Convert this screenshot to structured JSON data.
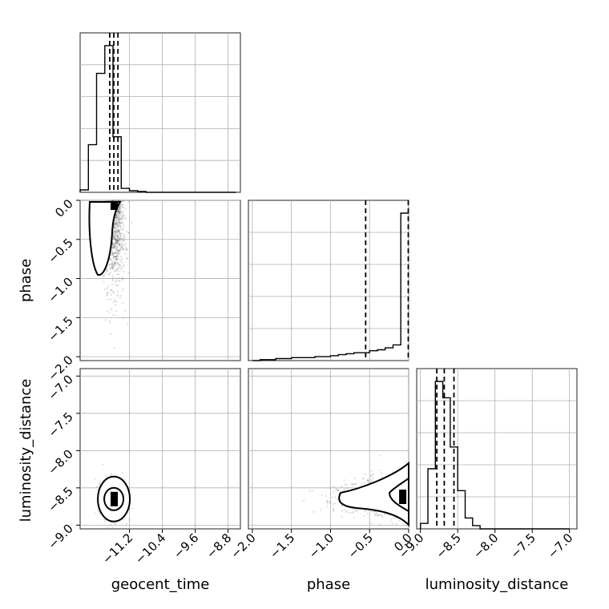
{
  "chart_data": {
    "type": "corner",
    "parameters": [
      "geocent_time",
      "phase",
      "luminosity_distance"
    ],
    "quantiles_shown": true,
    "grid": true,
    "ranges": {
      "geocent_time": [
        -12.4,
        -8.5
      ],
      "phase": [
        -2.05,
        0.0
      ],
      "luminosity_distance": [
        -9.05,
        -6.9
      ]
    },
    "ticks": {
      "geocent_time": [
        -11.2,
        -10.4,
        -9.6,
        -8.8
      ],
      "phase": [
        -2.0,
        -1.5,
        -1.0,
        -0.5,
        0.0
      ],
      "luminosity_distance": [
        -9.0,
        -8.5,
        -8.0,
        -7.5,
        -7.0
      ]
    },
    "tick_labels": {
      "geocent_time": [
        "−11.2",
        "−10.4",
        "−9.6",
        "−8.8"
      ],
      "phase": [
        "−2.0",
        "−1.5",
        "−1.0",
        "−0.5",
        "0.0"
      ],
      "luminosity_distance": [
        "−9.0",
        "−8.5",
        "−8.0",
        "−7.5",
        "−7.0"
      ]
    },
    "axis_labels": {
      "x_bottom": [
        "geocent_time",
        "phase",
        "luminosity_distance"
      ],
      "y_left": [
        "phase",
        "luminosity_distance"
      ]
    },
    "histograms": {
      "geocent_time": {
        "bin_edges": [
          -12.4,
          -12.2,
          -12.0,
          -11.8,
          -11.6,
          -11.4,
          -11.2,
          -11.0,
          -10.8,
          -10.6,
          -10.4,
          -10.2,
          -10.0,
          -9.8,
          -9.6,
          -9.4,
          -9.2,
          -9.0,
          -8.8,
          -8.6
        ],
        "counts": [
          3,
          60,
          150,
          185,
          70,
          5,
          2,
          1,
          0,
          0,
          0,
          0,
          0,
          0,
          0,
          0,
          0,
          0,
          0
        ],
        "quantiles": [
          -11.68,
          -11.58,
          -11.48
        ]
      },
      "phase": {
        "bin_edges": [
          -2.0,
          -1.9,
          -1.8,
          -1.7,
          -1.6,
          -1.5,
          -1.4,
          -1.3,
          -1.2,
          -1.1,
          -1.0,
          -0.9,
          -0.8,
          -0.7,
          -0.6,
          -0.5,
          -0.4,
          -0.3,
          -0.2,
          -0.1,
          0.0
        ],
        "counts": [
          0,
          1,
          1,
          2,
          2,
          3,
          3,
          3,
          4,
          4,
          5,
          6,
          7,
          8,
          8,
          10,
          11,
          13,
          16,
          150
        ],
        "quantiles": [
          -0.55,
          -0.005
        ]
      },
      "luminosity_distance": {
        "bin_edges": [
          -9.0,
          -8.9,
          -8.8,
          -8.7,
          -8.6,
          -8.5,
          -8.4,
          -8.3,
          -8.2,
          -8.1,
          -8.0,
          -7.9,
          -7.8,
          -7.7,
          -7.6,
          -7.5,
          -7.4,
          -7.3,
          -7.2,
          -7.1,
          -7.0
        ],
        "counts": [
          5,
          55,
          135,
          120,
          75,
          35,
          10,
          3,
          0,
          0,
          0,
          0,
          0,
          0,
          0,
          0,
          0,
          0,
          0,
          0
        ],
        "quantiles": [
          -8.78,
          -8.68,
          -8.55
        ]
      }
    },
    "pair_modes": {
      "geocent_time_vs_phase": {
        "x": -11.58,
        "y": -0.03
      },
      "geocent_time_vs_luminosity_distance": {
        "x": -11.58,
        "y": -8.65
      },
      "phase_vs_luminosity_distance": {
        "x": -0.03,
        "y": -8.62
      }
    }
  }
}
